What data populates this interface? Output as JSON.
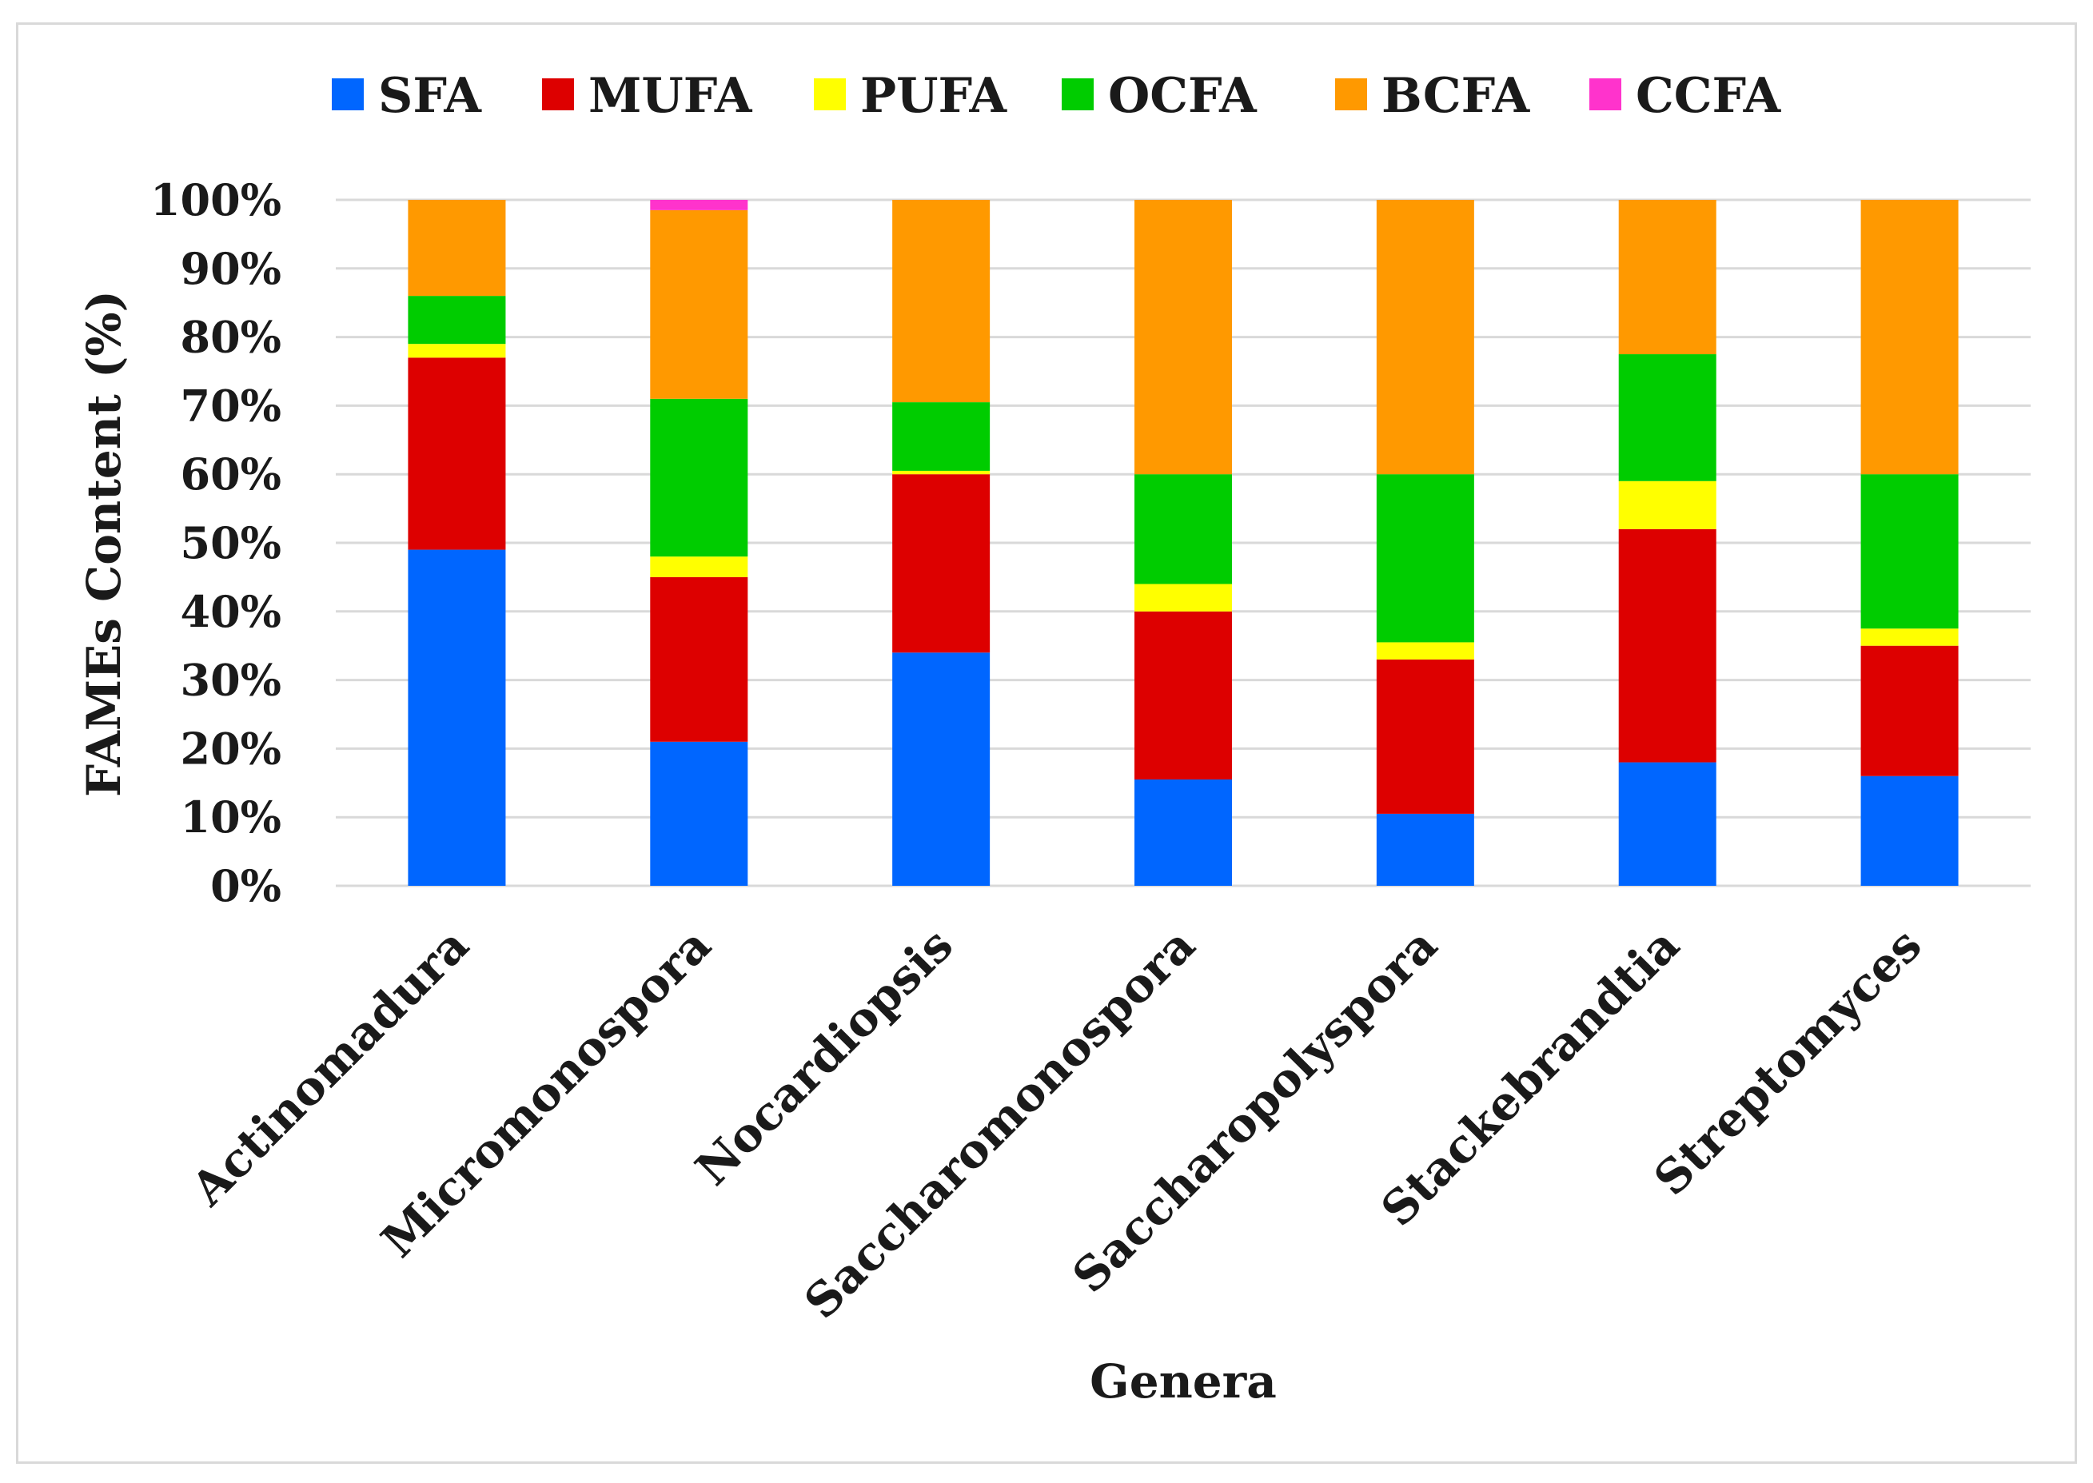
{
  "chart_data": {
    "type": "bar",
    "stacked": true,
    "percent_stacked": true,
    "title": "",
    "xlabel": "Genera",
    "ylabel": "FAMEs Content (%)",
    "ylim": [
      0,
      100
    ],
    "yticks": [
      "0%",
      "10%",
      "20%",
      "30%",
      "40%",
      "50%",
      "60%",
      "70%",
      "80%",
      "90%",
      "100%"
    ],
    "grid": true,
    "legend_position": "top",
    "categories": [
      "Actinomadura",
      "Micromonospora",
      "Nocardiopsis",
      "Saccharomonospora",
      "Saccharopolyspora",
      "Stackebrandtia",
      "Streptomyces"
    ],
    "series": [
      {
        "name": "SFA",
        "color": "#0066ff",
        "values": [
          49,
          21,
          34,
          15.5,
          10.5,
          18,
          16
        ]
      },
      {
        "name": "MUFA",
        "color": "#dd0000",
        "values": [
          28,
          24,
          26,
          24.5,
          22.5,
          34,
          19
        ]
      },
      {
        "name": "PUFA",
        "color": "#ffff00",
        "values": [
          2,
          3,
          0.5,
          4,
          2.5,
          7,
          2.5
        ]
      },
      {
        "name": "OCFA",
        "color": "#00cc00",
        "values": [
          7,
          23,
          10,
          16,
          24.5,
          18.5,
          22.5
        ]
      },
      {
        "name": "BCFA",
        "color": "#ff9900",
        "values": [
          14,
          27.5,
          29.5,
          40,
          40,
          22.5,
          40
        ]
      },
      {
        "name": "CCFA",
        "color": "#ff33cc",
        "values": [
          0,
          1.5,
          0,
          0,
          0,
          0,
          0
        ]
      }
    ]
  }
}
